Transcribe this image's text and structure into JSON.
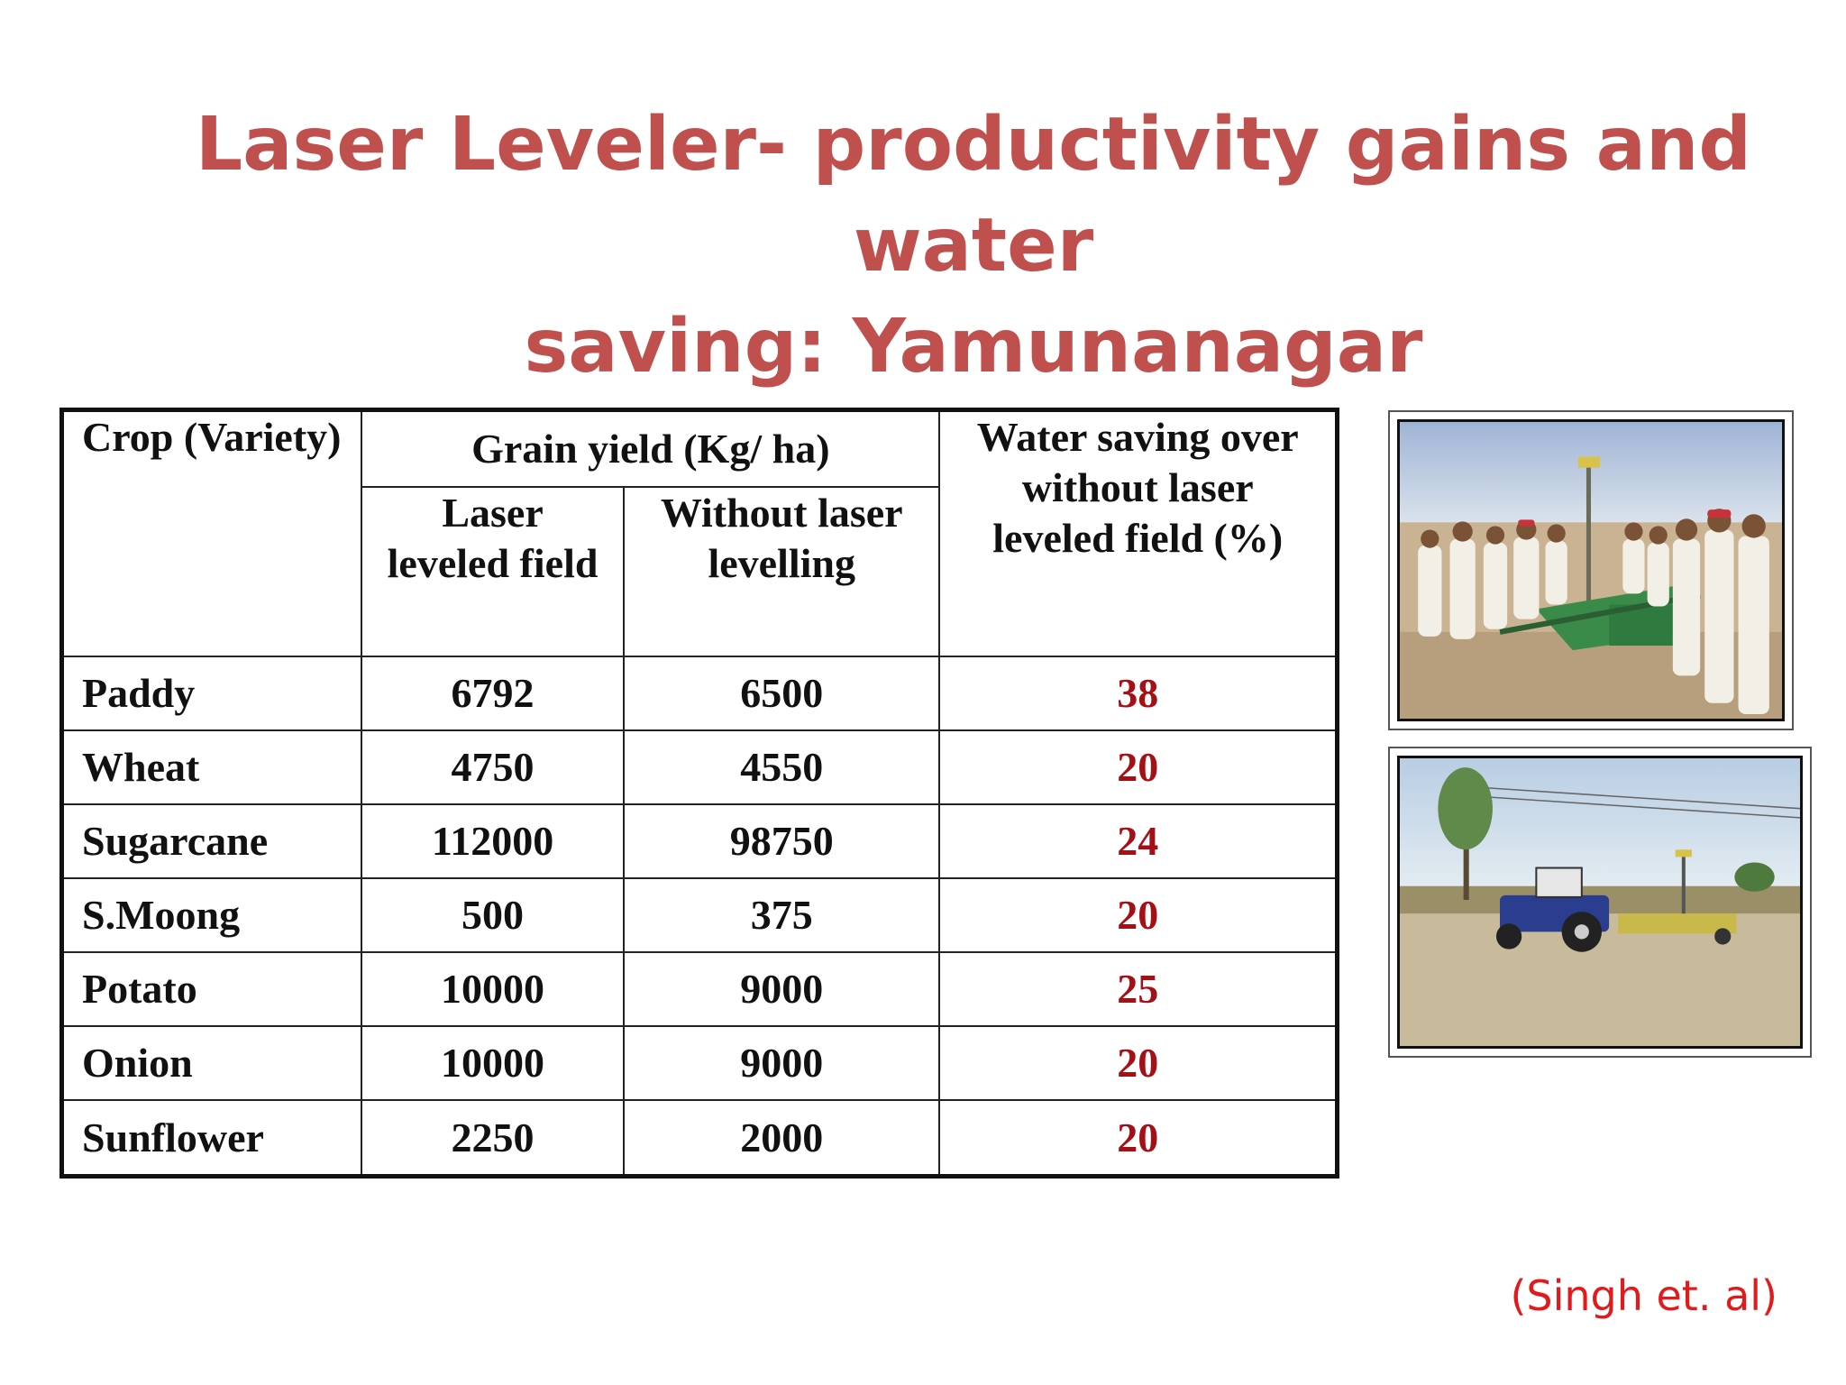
{
  "title": {
    "line1": "Laser Leveler- productivity gains and water",
    "line2": "saving:  Yamunanagar"
  },
  "table": {
    "headers": {
      "crop": "Crop (Variety)",
      "grain_yield": "Grain yield (Kg/ ha)",
      "laser": "Laser leveled field",
      "without": "Without laser levelling",
      "water": "Water saving over without laser leveled field (%)"
    },
    "rows": [
      {
        "crop": "Paddy",
        "laser": "6792",
        "without": "6500",
        "water": "38"
      },
      {
        "crop": "Wheat",
        "laser": "4750",
        "without": "4550",
        "water": "20"
      },
      {
        "crop": "Sugarcane",
        "laser": "112000",
        "without": "98750",
        "water": "24"
      },
      {
        "crop": "S.Moong",
        "laser": "500",
        "without": "375",
        "water": "20"
      },
      {
        "crop": "Potato",
        "laser": "10000",
        "without": "9000",
        "water": "25"
      },
      {
        "crop": "Onion",
        "laser": "10000",
        "without": "9000",
        "water": "20"
      },
      {
        "crop": "Sunflower",
        "laser": "2250",
        "without": "2000",
        "water": "20"
      }
    ]
  },
  "citation": "(Singh et. al)",
  "colors": {
    "title": "#c0504d",
    "water_values": "#a50f16",
    "citation": "#e31a1c"
  }
}
